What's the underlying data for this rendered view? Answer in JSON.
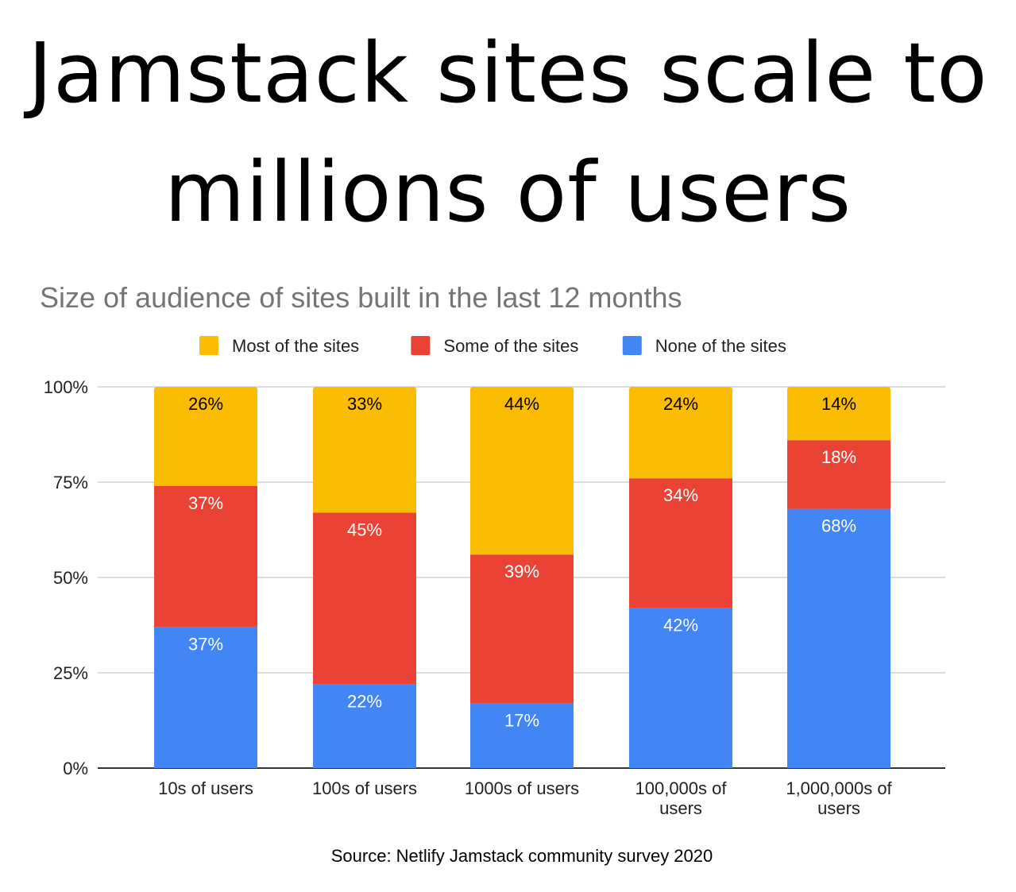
{
  "headline": {
    "line1": "Jamstack sites scale to",
    "line2": "millions of users"
  },
  "source": "Source: Netlify Jamstack community survey 2020",
  "chart_data": {
    "type": "bar",
    "stacked": true,
    "title": "Size of audience of sites built in the last 12 months",
    "categories": [
      [
        "10s of users"
      ],
      [
        "100s of users"
      ],
      [
        "1000s of users"
      ],
      [
        "100,000s of",
        "users"
      ],
      [
        "1,000,000s of",
        "users"
      ]
    ],
    "series": [
      {
        "name": "None of the sites",
        "color": "#4285F4",
        "label_color": "#ffffff",
        "values": [
          37,
          22,
          17,
          42,
          68
        ]
      },
      {
        "name": "Some of the sites",
        "color": "#EA4335",
        "label_color": "#ffffff",
        "values": [
          37,
          45,
          39,
          34,
          18
        ]
      },
      {
        "name": "Most of the sites",
        "color": "#FBBC04",
        "label_color": "#000000",
        "values": [
          26,
          33,
          44,
          24,
          14
        ]
      }
    ],
    "legend_order": [
      "Most of the sites",
      "Some of the sites",
      "None of the sites"
    ],
    "legend_position": "top",
    "yticks": [
      "0%",
      "25%",
      "50%",
      "75%",
      "100%"
    ],
    "ylim": [
      0,
      100
    ],
    "grid": true
  }
}
